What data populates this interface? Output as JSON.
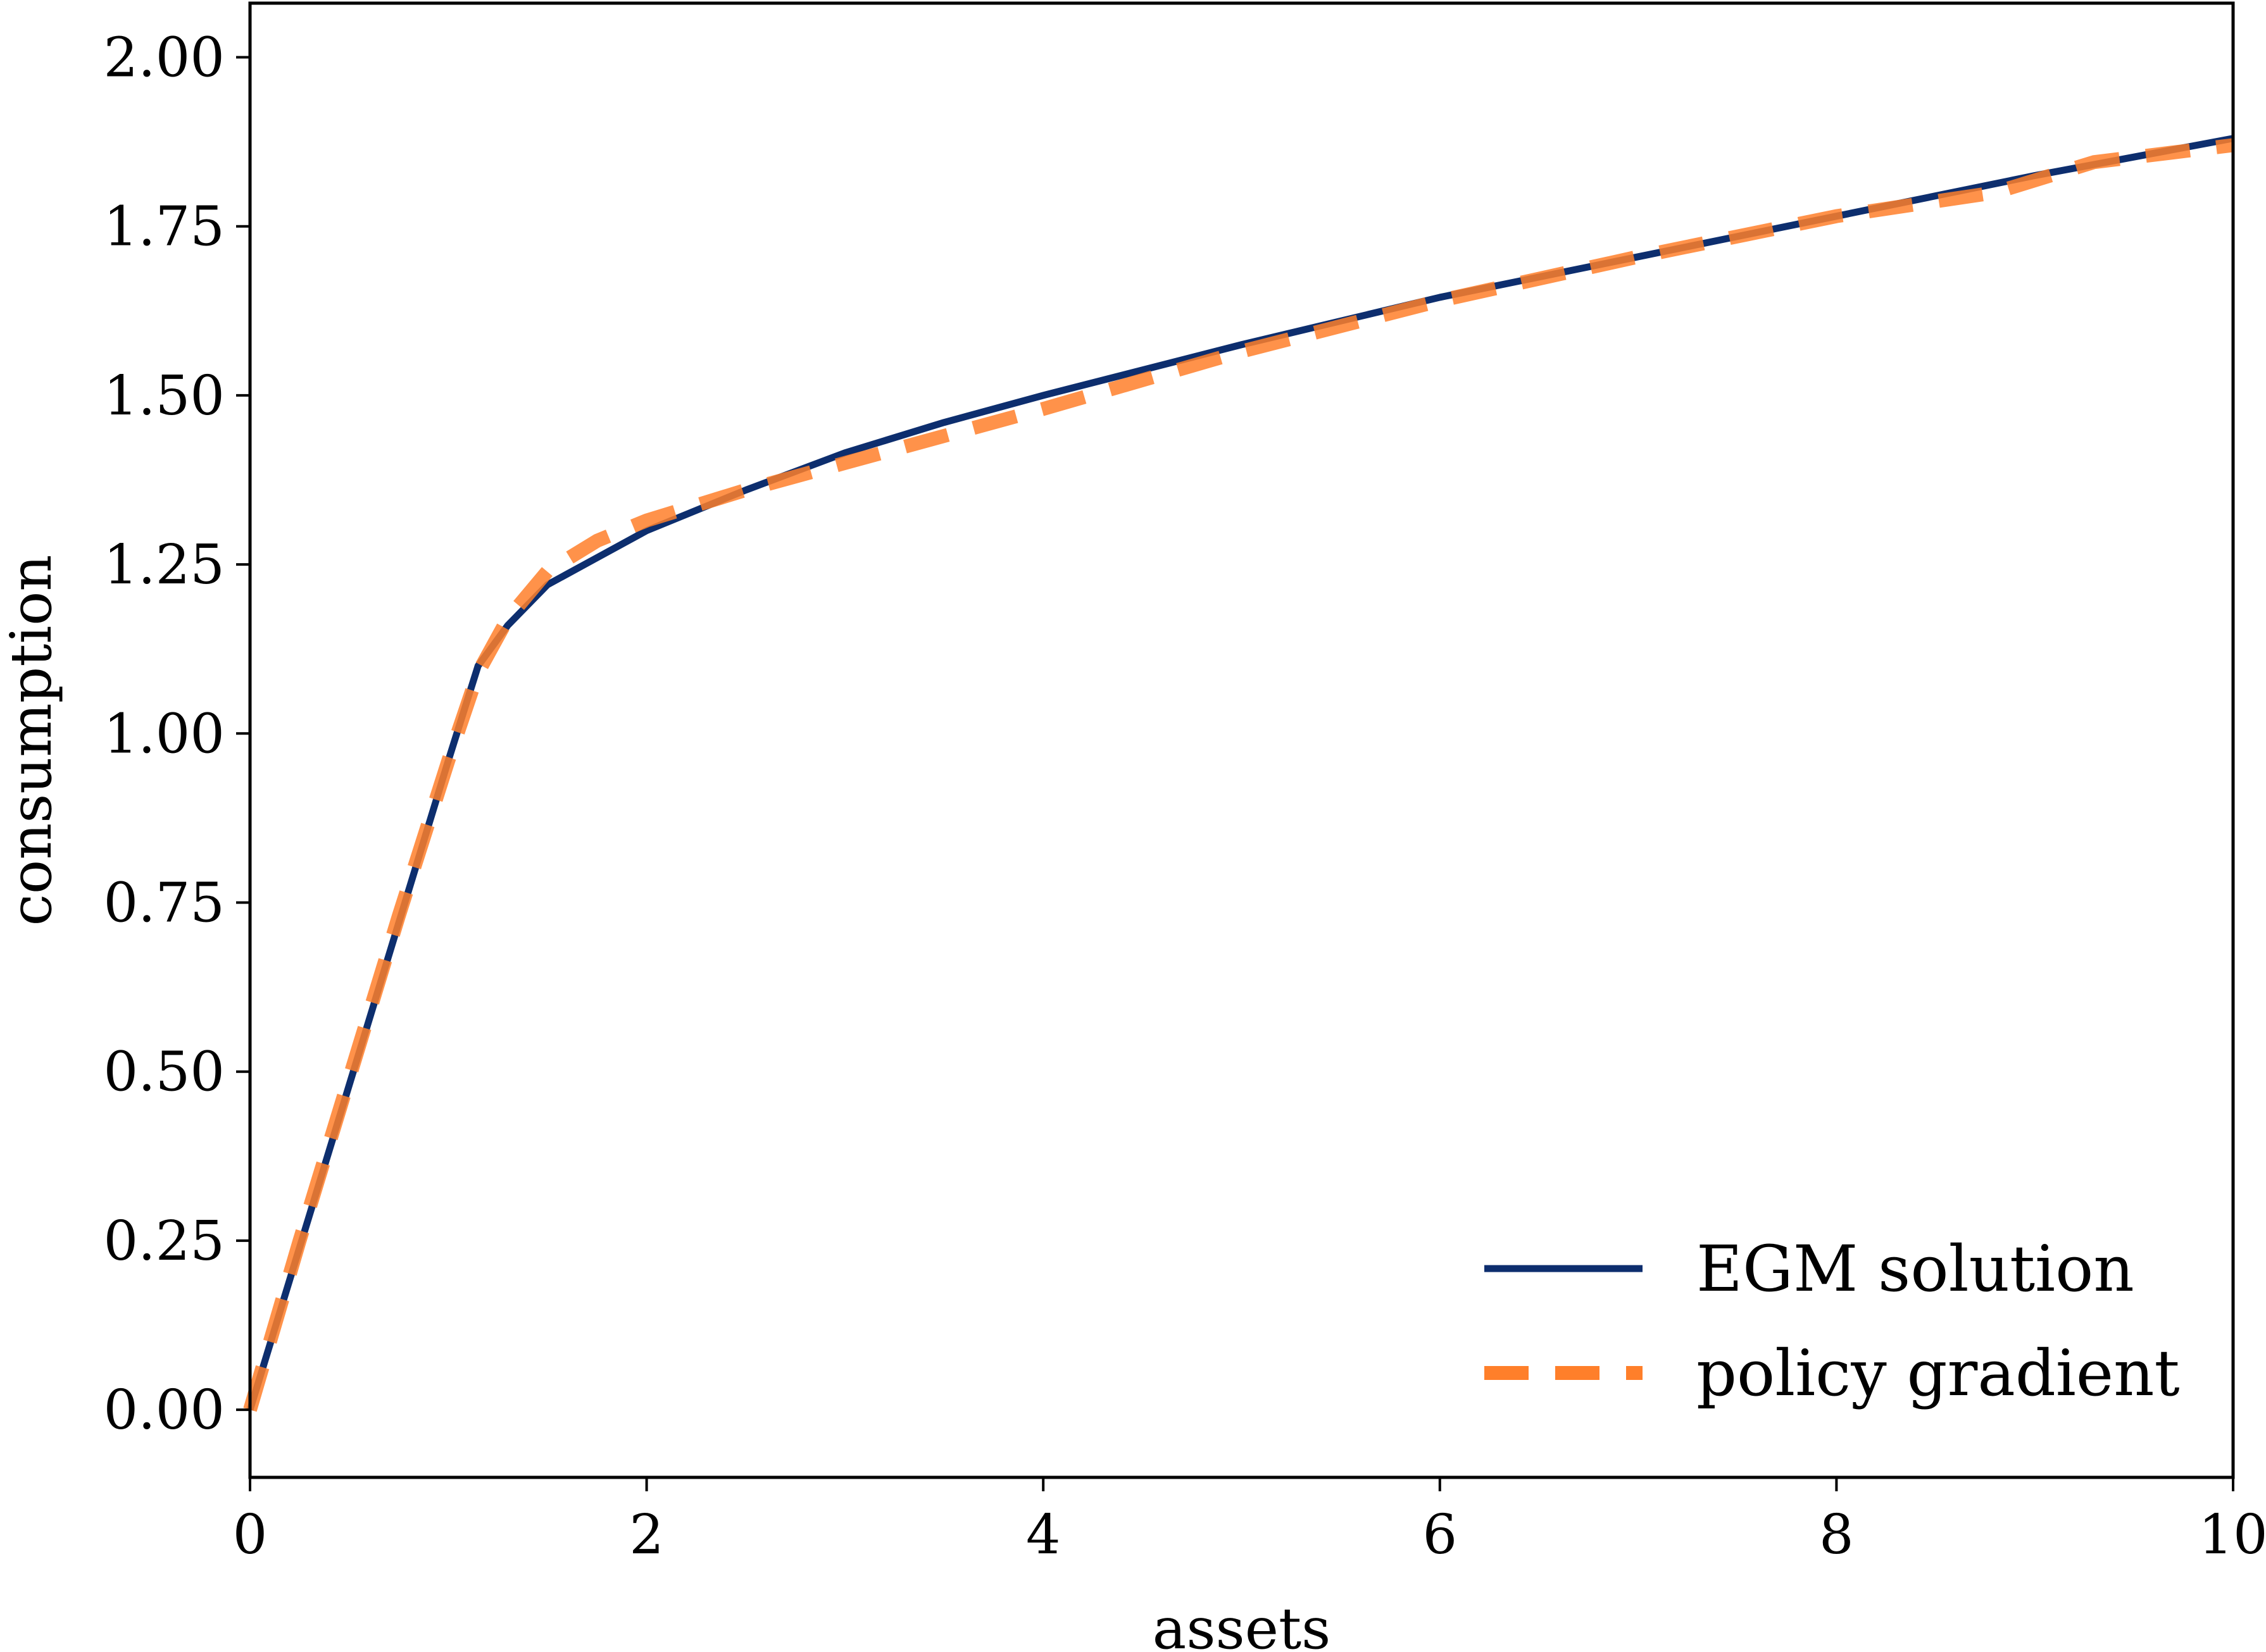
{
  "chart_data": {
    "type": "line",
    "title": "",
    "xlabel": "assets",
    "ylabel": "consumption",
    "xlim": [
      0,
      10
    ],
    "ylim": [
      -0.1,
      2.08
    ],
    "xticks": [
      0,
      2,
      4,
      6,
      8,
      10
    ],
    "xtick_labels": [
      "0",
      "2",
      "4",
      "6",
      "8",
      "10"
    ],
    "yticks": [
      0.0,
      0.25,
      0.5,
      0.75,
      1.0,
      1.25,
      1.5,
      1.75,
      2.0
    ],
    "ytick_labels": [
      "0.00",
      "0.25",
      "0.50",
      "0.75",
      "1.00",
      "1.25",
      "1.50",
      "1.75",
      "2.00"
    ],
    "grid": false,
    "legend_position": "lower-right",
    "series": [
      {
        "name": "EGM solution",
        "color": "#0d2e6e",
        "style": "solid",
        "x": [
          0,
          0.25,
          0.5,
          0.75,
          1.0,
          1.15,
          1.3,
          1.5,
          1.75,
          2.0,
          2.5,
          3.0,
          3.5,
          4.0,
          5.0,
          6.0,
          7.0,
          8.0,
          9.0,
          10.0
        ],
        "y": [
          0.0,
          0.24,
          0.48,
          0.72,
          0.96,
          1.1,
          1.16,
          1.22,
          1.26,
          1.3,
          1.36,
          1.415,
          1.46,
          1.5,
          1.575,
          1.645,
          1.705,
          1.765,
          1.825,
          1.88
        ]
      },
      {
        "name": "policy gradient",
        "color": "#ff7f2a",
        "style": "dashed",
        "x": [
          0,
          0.25,
          0.5,
          0.75,
          1.0,
          1.15,
          1.3,
          1.5,
          1.75,
          2.0,
          2.5,
          3.0,
          3.5,
          4.0,
          5.0,
          6.0,
          7.0,
          8.0,
          8.8,
          9.3,
          10.0
        ],
        "y": [
          0.0,
          0.25,
          0.49,
          0.73,
          0.96,
          1.09,
          1.17,
          1.24,
          1.285,
          1.315,
          1.36,
          1.4,
          1.44,
          1.48,
          1.565,
          1.64,
          1.705,
          1.765,
          1.8,
          1.845,
          1.87
        ]
      }
    ]
  }
}
